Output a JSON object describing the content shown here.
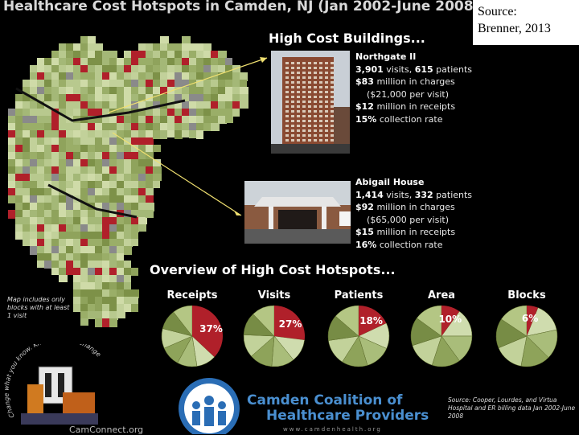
{
  "title": "Healthcare Cost Hotspots in Camden, NJ (Jan 2002-June 2008)",
  "source_box": {
    "line1": "Source:",
    "line2": "Brenner, 2013"
  },
  "high_cost_heading": "High Cost Buildings...",
  "buildings": [
    {
      "name": "Northgate II",
      "lines": [
        {
          "v": "3,901",
          "t": " visits, ",
          "v2": "615",
          "t2": " patients"
        },
        {
          "v": "$83",
          "t": " million in charges",
          "v2": "",
          "t2": ""
        },
        {
          "v": "",
          "t": "($21,000 per visit)",
          "v2": "",
          "t2": ""
        },
        {
          "v": "$12",
          "t": " million in receipts",
          "v2": "",
          "t2": ""
        },
        {
          "v": "15%",
          "t": " collection rate",
          "v2": "",
          "t2": ""
        }
      ]
    },
    {
      "name": "Abigail House",
      "lines": [
        {
          "v": "1,414",
          "t": " visits, ",
          "v2": "332",
          "t2": " patients"
        },
        {
          "v": "$92",
          "t": " million in charges",
          "v2": "",
          "t2": ""
        },
        {
          "v": "",
          "t": "($65,000 per visit)",
          "v2": "",
          "t2": ""
        },
        {
          "v": "$15",
          "t": " million in receipts",
          "v2": "",
          "t2": ""
        },
        {
          "v": "16%",
          "t": " collection rate",
          "v2": "",
          "t2": ""
        }
      ]
    }
  ],
  "overview_heading": "Overview of High Cost Hotspots...",
  "map_note": "Map includes only blocks with at least 1 visit",
  "logo": {
    "line1": "Camden Coalition of",
    "line2": "Healthcare Providers",
    "url": "www.camdenhealth.org"
  },
  "cam_connect": "CamConnect.org",
  "cam_slogan": "Change what you know. Know what to change",
  "data_source": "Source: Cooper, Lourdes, and Virtua Hospital and ER billing data Jan 2002-June 2008",
  "colors": {
    "hotspot": "#b0202a",
    "green_dark": "#6e7d35",
    "green_light": "#b8c98e",
    "gray": "#8a8a8a"
  },
  "chart_data": {
    "type": "pie",
    "title": "Overview of High Cost Hotspots...",
    "pies": [
      {
        "label": "Receipts",
        "hotspot_pct": 37,
        "pct_label": "37%"
      },
      {
        "label": "Visits",
        "hotspot_pct": 27,
        "pct_label": "27%"
      },
      {
        "label": "Patients",
        "hotspot_pct": 18,
        "pct_label": "18%"
      },
      {
        "label": "Area",
        "hotspot_pct": 10,
        "pct_label": "10%"
      },
      {
        "label": "Blocks",
        "hotspot_pct": 6,
        "pct_label": "6%"
      }
    ]
  }
}
